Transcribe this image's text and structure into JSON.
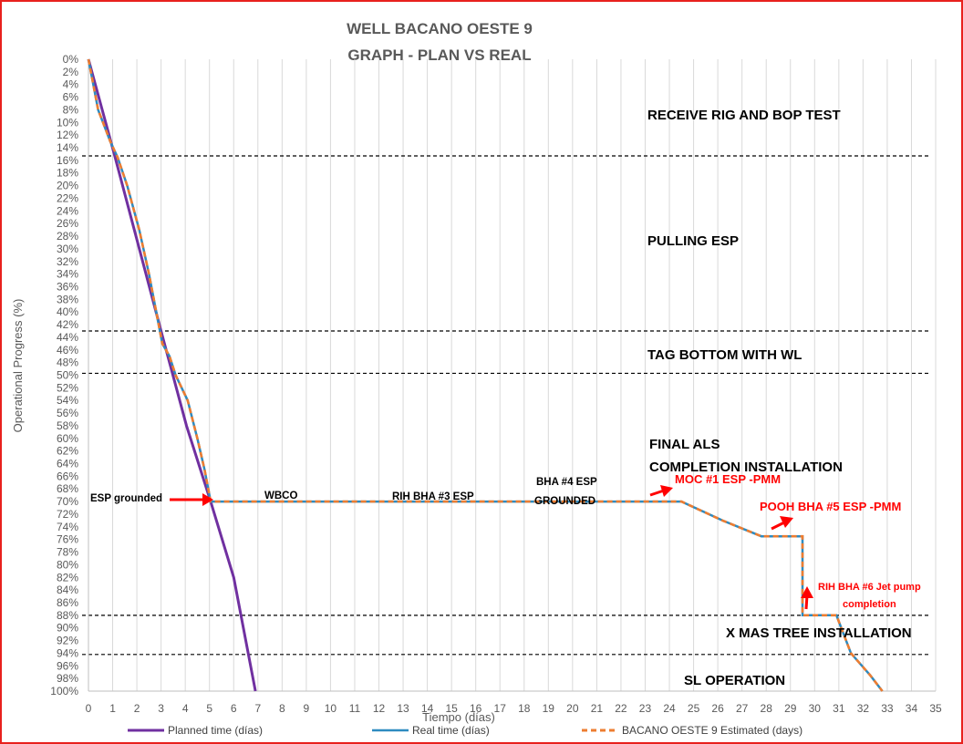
{
  "chart_data": {
    "type": "line",
    "title": "WELL BACANO OESTE 9",
    "subtitle": "GRAPH  - PLAN VS REAL",
    "xlabel": "Tiempo (días)",
    "ylabel": "Operational Progress (%)",
    "xlim": [
      0,
      35
    ],
    "ylim": [
      0,
      100
    ],
    "y_inverted": true,
    "grid": "vertical",
    "legend_position": "bottom",
    "x_ticks": [
      "0",
      "1",
      "2",
      "3",
      "4",
      "5",
      "6",
      "7",
      "8",
      "9",
      "10",
      "11",
      "12",
      "13",
      "14",
      "15",
      "16",
      "17",
      "18",
      "19",
      "20",
      "21",
      "22",
      "23",
      "24",
      "25",
      "26",
      "27",
      "28",
      "29",
      "30",
      "31",
      "32",
      "33",
      "34",
      "35"
    ],
    "y_ticks": [
      "0%",
      "2%",
      "4%",
      "6%",
      "8%",
      "10%",
      "12%",
      "14%",
      "16%",
      "18%",
      "20%",
      "22%",
      "24%",
      "26%",
      "28%",
      "30%",
      "32%",
      "34%",
      "36%",
      "38%",
      "40%",
      "42%",
      "44%",
      "46%",
      "48%",
      "50%",
      "52%",
      "54%",
      "56%",
      "58%",
      "60%",
      "62%",
      "64%",
      "66%",
      "68%",
      "70%",
      "72%",
      "74%",
      "76%",
      "78%",
      "80%",
      "82%",
      "84%",
      "86%",
      "88%",
      "90%",
      "92%",
      "94%",
      "96%",
      "98%",
      "100%"
    ],
    "series": [
      {
        "name": "Planned time (días)",
        "color": "#7030a0",
        "dash": "solid",
        "points": [
          [
            0,
            0
          ],
          [
            1.1,
            15.5
          ],
          [
            3.0,
            43
          ],
          [
            4.05,
            58
          ],
          [
            5.05,
            70
          ],
          [
            6.0,
            82
          ],
          [
            6.9,
            100
          ]
        ]
      },
      {
        "name": "Real time (días)",
        "color": "#2e8bc0",
        "dash": "solid",
        "points": [
          [
            0,
            0
          ],
          [
            0.4,
            8
          ],
          [
            0.9,
            13
          ],
          [
            1.2,
            15.5
          ],
          [
            1.6,
            20
          ],
          [
            2.1,
            27
          ],
          [
            2.5,
            34
          ],
          [
            2.9,
            42
          ],
          [
            3.05,
            45
          ],
          [
            3.35,
            47
          ],
          [
            3.6,
            50
          ],
          [
            4.1,
            54
          ],
          [
            4.5,
            60
          ],
          [
            4.8,
            65
          ],
          [
            5.05,
            70
          ],
          [
            24.5,
            70
          ],
          [
            26.2,
            73
          ],
          [
            27.8,
            75.5
          ],
          [
            29.5,
            75.5
          ],
          [
            29.5,
            88
          ],
          [
            30.9,
            88
          ],
          [
            31.5,
            94
          ],
          [
            32.3,
            97.5
          ],
          [
            32.8,
            100
          ]
        ]
      },
      {
        "name": "BACANO OESTE 9 Estimated (days)",
        "color": "#ed7d31",
        "dash": "dashed",
        "points": [
          [
            0,
            0
          ],
          [
            0.4,
            8
          ],
          [
            0.9,
            13
          ],
          [
            1.2,
            15.5
          ],
          [
            1.6,
            20
          ],
          [
            2.1,
            27
          ],
          [
            2.5,
            34
          ],
          [
            2.9,
            42
          ],
          [
            3.05,
            45
          ],
          [
            3.35,
            47
          ],
          [
            3.6,
            50
          ],
          [
            4.1,
            54
          ],
          [
            4.5,
            60
          ],
          [
            4.8,
            65
          ],
          [
            5.05,
            70
          ],
          [
            24.5,
            70
          ],
          [
            26.2,
            73
          ],
          [
            27.8,
            75.5
          ],
          [
            29.5,
            75.5
          ],
          [
            29.5,
            88
          ],
          [
            30.9,
            88
          ],
          [
            31.5,
            94
          ],
          [
            32.3,
            97.5
          ],
          [
            32.8,
            100
          ]
        ]
      }
    ],
    "phase_separators_pct": [
      15.3,
      43,
      49.7,
      88,
      94.2
    ],
    "phase_labels": [
      "RECEIVE RIG AND BOP TEST",
      "PULLING ESP",
      "TAG BOTTOM WITH WL",
      "FINAL ALS",
      "COMPLETION INSTALLATION",
      "X MAS TREE INSTALLATION",
      "SL OPERATION"
    ],
    "annotations": {
      "esp_grounded": "ESP grounded",
      "wbco": "WBCO",
      "rih_bha3": "RIH BHA #3 ESP",
      "bha4_line1": "BHA #4 ESP",
      "bha4_line2": "GROUNDED",
      "moc1": "MOC #1  ESP -PMM",
      "pooh_bha5": "POOH BHA #5 ESP -PMM",
      "rih_bha6_line1": "RIH BHA #6 Jet pump",
      "rih_bha6_line2": "completion"
    },
    "annotation_color": "#ff0000"
  }
}
